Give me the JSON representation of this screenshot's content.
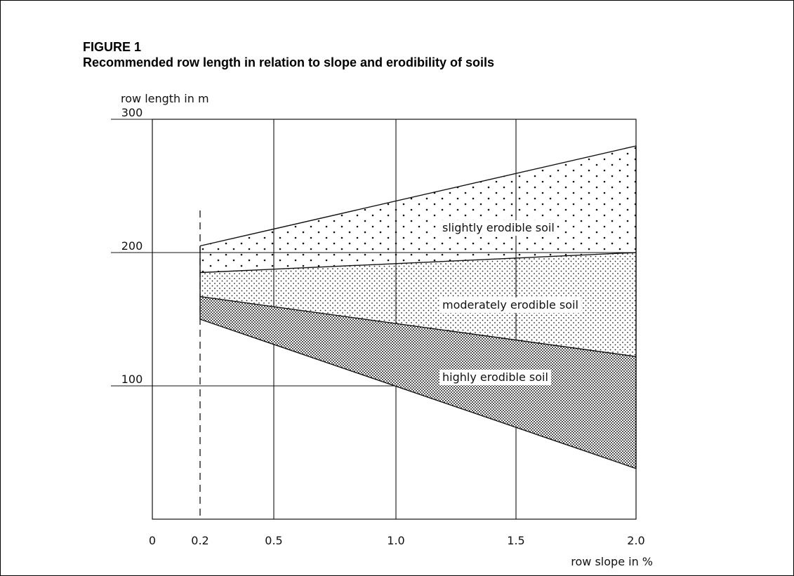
{
  "figure": {
    "number": "FIGURE 1",
    "title": "Recommended row length in relation to slope and erodibility of soils"
  },
  "chart_data": {
    "type": "area",
    "ylabel": "row length in m",
    "xlabel": "row slope in %",
    "xlim": [
      0,
      2.0
    ],
    "ylim": [
      0,
      300
    ],
    "x_ticks": [
      0,
      0.2,
      0.5,
      1.0,
      1.5,
      2.0
    ],
    "x_tick_labels": [
      "0",
      "0.2",
      "0.5",
      "1.0",
      "1.5",
      "2.0"
    ],
    "y_ticks": [
      0,
      100,
      200,
      300
    ],
    "y_tick_labels": [
      "0",
      "100",
      "200",
      "300"
    ],
    "grid": true,
    "reference_line_x": 0.2,
    "series": [
      {
        "name": "slightly erodible soil",
        "x": [
          0.2,
          2.0
        ],
        "upper": [
          205,
          280
        ],
        "lower": [
          185,
          200
        ],
        "pattern": "sparse-dots"
      },
      {
        "name": "moderately erodible soil",
        "x": [
          0.2,
          2.0
        ],
        "upper": [
          185,
          200
        ],
        "lower": [
          167,
          122
        ],
        "pattern": "medium-dots"
      },
      {
        "name": "highly erodible soil",
        "x": [
          0.2,
          2.0
        ],
        "upper": [
          167,
          122
        ],
        "lower": [
          150,
          38
        ],
        "pattern": "dense-dots"
      }
    ]
  }
}
